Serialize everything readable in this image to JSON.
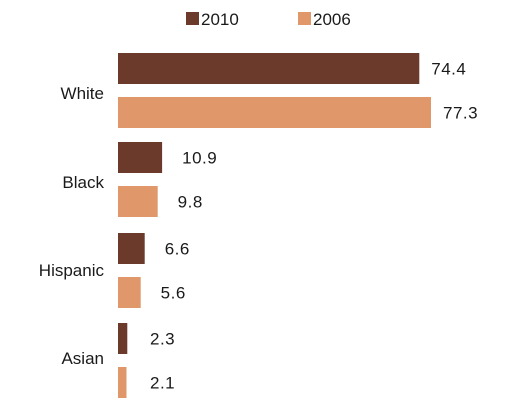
{
  "chart_data": {
    "type": "bar",
    "orientation": "horizontal",
    "categories": [
      "White",
      "Black",
      "Hispanic",
      "Asian"
    ],
    "series": [
      {
        "name": "2010",
        "values": [
          74.4,
          10.9,
          6.6,
          2.3
        ],
        "color": "#6b3a2a"
      },
      {
        "name": "2006",
        "values": [
          77.3,
          9.8,
          5.6,
          2.1
        ],
        "color": "#e0986a"
      }
    ],
    "xlim": [
      0,
      77.3
    ],
    "legend_position": "top",
    "grid": false,
    "data_labels": true
  }
}
